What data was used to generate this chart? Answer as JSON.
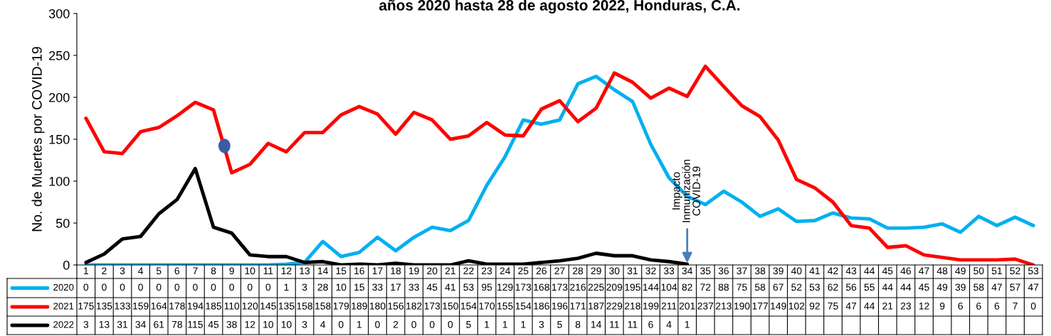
{
  "chart_data": {
    "type": "line",
    "title": "años 2020 hasta 28 de agosto 2022, Honduras, C.A.",
    "ylabel": "No. de Muertes por COVID-19",
    "categories": [
      "1",
      "2",
      "3",
      "4",
      "5",
      "6",
      "7",
      "8",
      "9",
      "10",
      "11",
      "12",
      "13",
      "14",
      "15",
      "16",
      "17",
      "18",
      "19",
      "20",
      "21",
      "22",
      "23",
      "24",
      "25",
      "26",
      "27",
      "28",
      "29",
      "30",
      "31",
      "32",
      "33",
      "34",
      "35",
      "36",
      "37",
      "38",
      "39",
      "40",
      "41",
      "42",
      "43",
      "44",
      "45",
      "46",
      "47",
      "48",
      "49",
      "50",
      "51",
      "52",
      "53"
    ],
    "series": [
      {
        "name": "2020",
        "color": "#00b0f0",
        "values": [
          0,
          0,
          0,
          0,
          0,
          0,
          0,
          0,
          0,
          0,
          0,
          1,
          3,
          28,
          10,
          15,
          33,
          17,
          33,
          45,
          41,
          53,
          95,
          129,
          173,
          168,
          173,
          216,
          225,
          209,
          195,
          144,
          104,
          82,
          72,
          88,
          75,
          58,
          67,
          52,
          53,
          62,
          56,
          55,
          44,
          44,
          45,
          49,
          39,
          58,
          47,
          57,
          47
        ]
      },
      {
        "name": "2021",
        "color": "#ff0000",
        "values": [
          175,
          135,
          133,
          159,
          164,
          178,
          194,
          185,
          110,
          120,
          145,
          135,
          158,
          158,
          179,
          189,
          180,
          156,
          182,
          173,
          150,
          154,
          170,
          155,
          154,
          186,
          196,
          171,
          187,
          229,
          218,
          199,
          211,
          201,
          237,
          213,
          190,
          177,
          149,
          102,
          92,
          75,
          47,
          44,
          21,
          23,
          12,
          9,
          6,
          6,
          6,
          7,
          0
        ]
      },
      {
        "name": "2022",
        "color": "#000000",
        "values": [
          3,
          13,
          31,
          34,
          61,
          78,
          115,
          45,
          38,
          12,
          10,
          10,
          3,
          4,
          0,
          1,
          0,
          2,
          0,
          0,
          0,
          5,
          1,
          1,
          1,
          3,
          5,
          8,
          14,
          11,
          11,
          6,
          4,
          1,
          null,
          null,
          null,
          null,
          null,
          null,
          null,
          null,
          null,
          null,
          null,
          null,
          null,
          null,
          null,
          null,
          null,
          null,
          null
        ]
      }
    ],
    "ylim": [
      0,
      300
    ],
    "yticks": [
      0,
      50,
      100,
      150,
      200,
      250,
      300
    ],
    "grid": false,
    "legend": "bottom",
    "data_labels": true,
    "marker": "none",
    "line_style": "solid",
    "annotations": [
      {
        "text": "Impacto\nInmunización\nCOVID-19",
        "x": "34",
        "y": 0
      }
    ]
  }
}
